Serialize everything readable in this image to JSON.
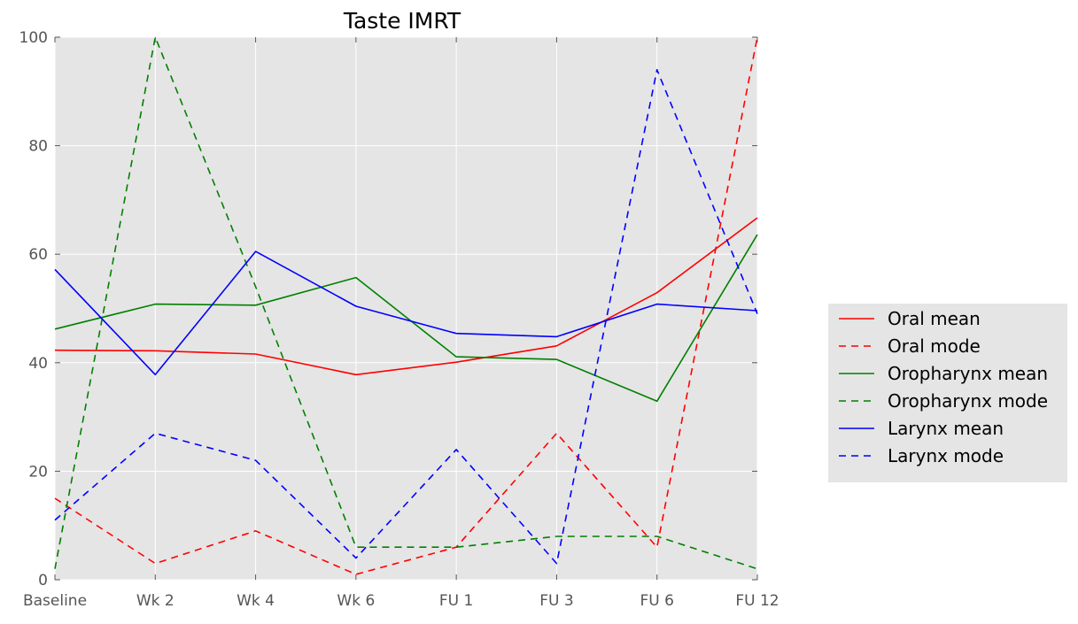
{
  "chart_data": {
    "type": "line",
    "title": "Taste IMRT",
    "xlabel": "",
    "ylabel": "",
    "categories": [
      "Baseline",
      "Wk 2",
      "Wk 4",
      "Wk 6",
      "FU 1",
      "FU 3",
      "FU 6",
      "FU 12"
    ],
    "ylim": [
      0,
      100
    ],
    "yticks": [
      0,
      20,
      40,
      60,
      80,
      100
    ],
    "grid": true,
    "legend_position": "right",
    "background": "#e5e5e5",
    "series": [
      {
        "name": "Oral mean",
        "color": "#ff0000",
        "style": "solid",
        "values": [
          42.3,
          42.2,
          41.6,
          37.8,
          40.1,
          43.1,
          52.9,
          66.7
        ]
      },
      {
        "name": "Oral mode",
        "color": "#ff0000",
        "style": "dashed",
        "values": [
          15,
          3,
          9,
          1,
          6,
          27,
          6,
          100
        ]
      },
      {
        "name": "Oropharynx mean",
        "color": "#008000",
        "style": "solid",
        "values": [
          46.2,
          50.8,
          50.6,
          55.7,
          41.1,
          40.6,
          32.9,
          63.6
        ]
      },
      {
        "name": "Oropharynx mode",
        "color": "#008000",
        "style": "dashed",
        "values": [
          2,
          100,
          54,
          6,
          6,
          8,
          8,
          2
        ]
      },
      {
        "name": "Larynx mean",
        "color": "#0000ff",
        "style": "solid",
        "values": [
          57.2,
          37.8,
          60.5,
          50.4,
          45.4,
          44.8,
          50.8,
          49.6
        ]
      },
      {
        "name": "Larynx mode",
        "color": "#0000ff",
        "style": "dashed",
        "values": [
          11,
          27,
          22,
          4,
          24,
          3,
          94,
          49
        ]
      }
    ]
  }
}
